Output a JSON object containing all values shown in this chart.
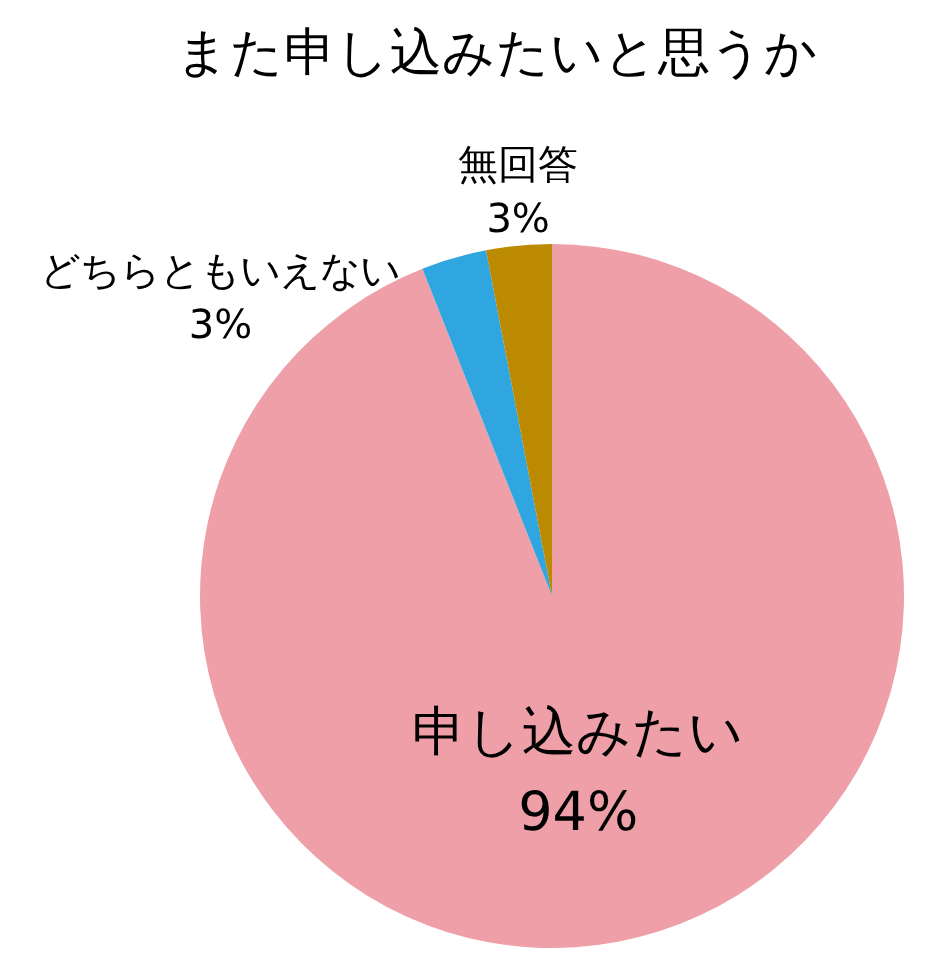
{
  "chart_data": {
    "type": "pie",
    "title": "また申し込みたいと思うか",
    "categories": [
      "申し込みたい",
      "どちらともいえない",
      "無回答"
    ],
    "values": [
      94,
      3,
      3
    ],
    "value_labels": [
      "94%",
      "3%",
      "3%"
    ],
    "colors": [
      "#ee9fa8",
      "#2fa6e0",
      "#bb8a00"
    ]
  }
}
